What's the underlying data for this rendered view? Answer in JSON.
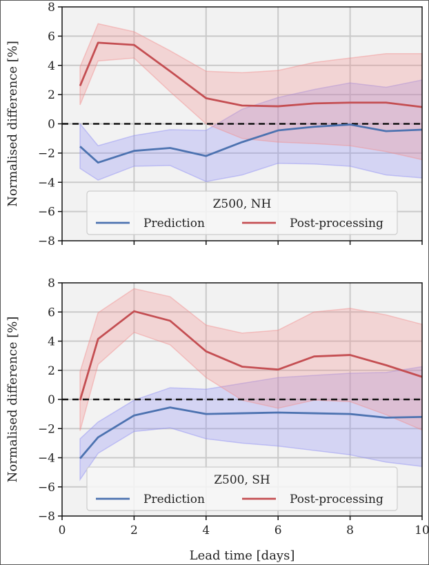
{
  "chart_data": [
    {
      "type": "line",
      "panel": "top",
      "legend_title": "Z500, NH",
      "xlabel": "",
      "ylabel": "Normalised difference [%]",
      "xlim": [
        0,
        10
      ],
      "ylim": [
        -8,
        8
      ],
      "yticks": [
        -8,
        -6,
        -4,
        -2,
        0,
        2,
        4,
        6,
        8
      ],
      "ytick_labels": [
        "−8",
        "−6",
        "−4",
        "−2",
        "0",
        "2",
        "4",
        "6",
        "8"
      ],
      "xticks": [
        0,
        2,
        4,
        6,
        8,
        10
      ],
      "xtick_labels": [],
      "grid": true,
      "reference_line": 0,
      "legend_position": "bottom-center",
      "series": [
        {
          "name": "Prediction",
          "color": "#4c72b0",
          "band_color": "#8f8ff5",
          "x": [
            0.5,
            1,
            2,
            3,
            4,
            5,
            6,
            7,
            8,
            9,
            10
          ],
          "values": [
            -1.55,
            -2.65,
            -1.85,
            -1.65,
            -2.2,
            -1.25,
            -0.45,
            -0.2,
            -0.05,
            -0.5,
            -0.4
          ],
          "upper": [
            0.0,
            -1.5,
            -0.8,
            -0.4,
            -0.45,
            1.0,
            1.8,
            2.35,
            2.8,
            2.5,
            3.0
          ],
          "lower": [
            -3.05,
            -3.85,
            -2.9,
            -2.85,
            -3.95,
            -3.5,
            -2.7,
            -2.75,
            -2.9,
            -3.5,
            -3.7
          ]
        },
        {
          "name": "Post-processing",
          "color": "#c44e52",
          "band_color": "#f28e8e",
          "x": [
            0.5,
            1,
            2,
            3,
            4,
            5,
            6,
            7,
            8,
            9,
            10
          ],
          "values": [
            2.6,
            5.55,
            5.4,
            3.6,
            1.75,
            1.25,
            1.2,
            1.4,
            1.45,
            1.45,
            1.15
          ],
          "upper": [
            3.9,
            6.85,
            6.3,
            5.0,
            3.6,
            3.5,
            3.65,
            4.2,
            4.5,
            4.8,
            4.8
          ],
          "lower": [
            1.3,
            4.3,
            4.5,
            2.2,
            0.0,
            -1.0,
            -1.25,
            -1.35,
            -1.5,
            -1.9,
            -2.45
          ]
        }
      ]
    },
    {
      "type": "line",
      "panel": "bottom",
      "legend_title": "Z500, SH",
      "xlabel": "Lead time [days]",
      "ylabel": "Normalised difference [%]",
      "xlim": [
        0,
        10
      ],
      "ylim": [
        -8,
        8
      ],
      "yticks": [
        -8,
        -6,
        -4,
        -2,
        0,
        2,
        4,
        6,
        8
      ],
      "ytick_labels": [
        "−8",
        "−6",
        "−4",
        "−2",
        "0",
        "2",
        "4",
        "6",
        "8"
      ],
      "xticks": [
        0,
        2,
        4,
        6,
        8,
        10
      ],
      "xtick_labels": [
        "0",
        "2",
        "4",
        "6",
        "8",
        "10"
      ],
      "grid": true,
      "reference_line": 0,
      "legend_position": "bottom-center",
      "series": [
        {
          "name": "Prediction",
          "color": "#4c72b0",
          "band_color": "#8f8ff5",
          "x": [
            0.5,
            1,
            2,
            3,
            4,
            5,
            6,
            7,
            8,
            9,
            10
          ],
          "values": [
            -4.05,
            -2.6,
            -1.1,
            -0.55,
            -1.0,
            -0.95,
            -0.9,
            -0.95,
            -1.0,
            -1.25,
            -1.2
          ],
          "upper": [
            -2.7,
            -1.55,
            -0.05,
            0.8,
            0.7,
            1.1,
            1.5,
            1.65,
            1.8,
            1.85,
            2.25
          ],
          "lower": [
            -5.5,
            -3.7,
            -2.2,
            -1.95,
            -2.7,
            -3.0,
            -3.2,
            -3.5,
            -3.8,
            -4.3,
            -4.6
          ]
        },
        {
          "name": "Post-processing",
          "color": "#c44e52",
          "band_color": "#f28e8e",
          "x": [
            0.5,
            1,
            2,
            3,
            4,
            5,
            6,
            7,
            8,
            9,
            10
          ],
          "values": [
            -0.05,
            4.15,
            6.05,
            5.4,
            3.3,
            2.25,
            2.05,
            2.95,
            3.05,
            2.35,
            1.55
          ],
          "upper": [
            1.9,
            5.95,
            7.6,
            7.05,
            5.1,
            4.55,
            4.75,
            6.0,
            6.25,
            5.8,
            5.15
          ],
          "lower": [
            -2.15,
            2.4,
            4.6,
            3.75,
            1.5,
            -0.05,
            -0.6,
            -0.05,
            -0.15,
            -1.05,
            -2.1
          ]
        }
      ]
    }
  ]
}
